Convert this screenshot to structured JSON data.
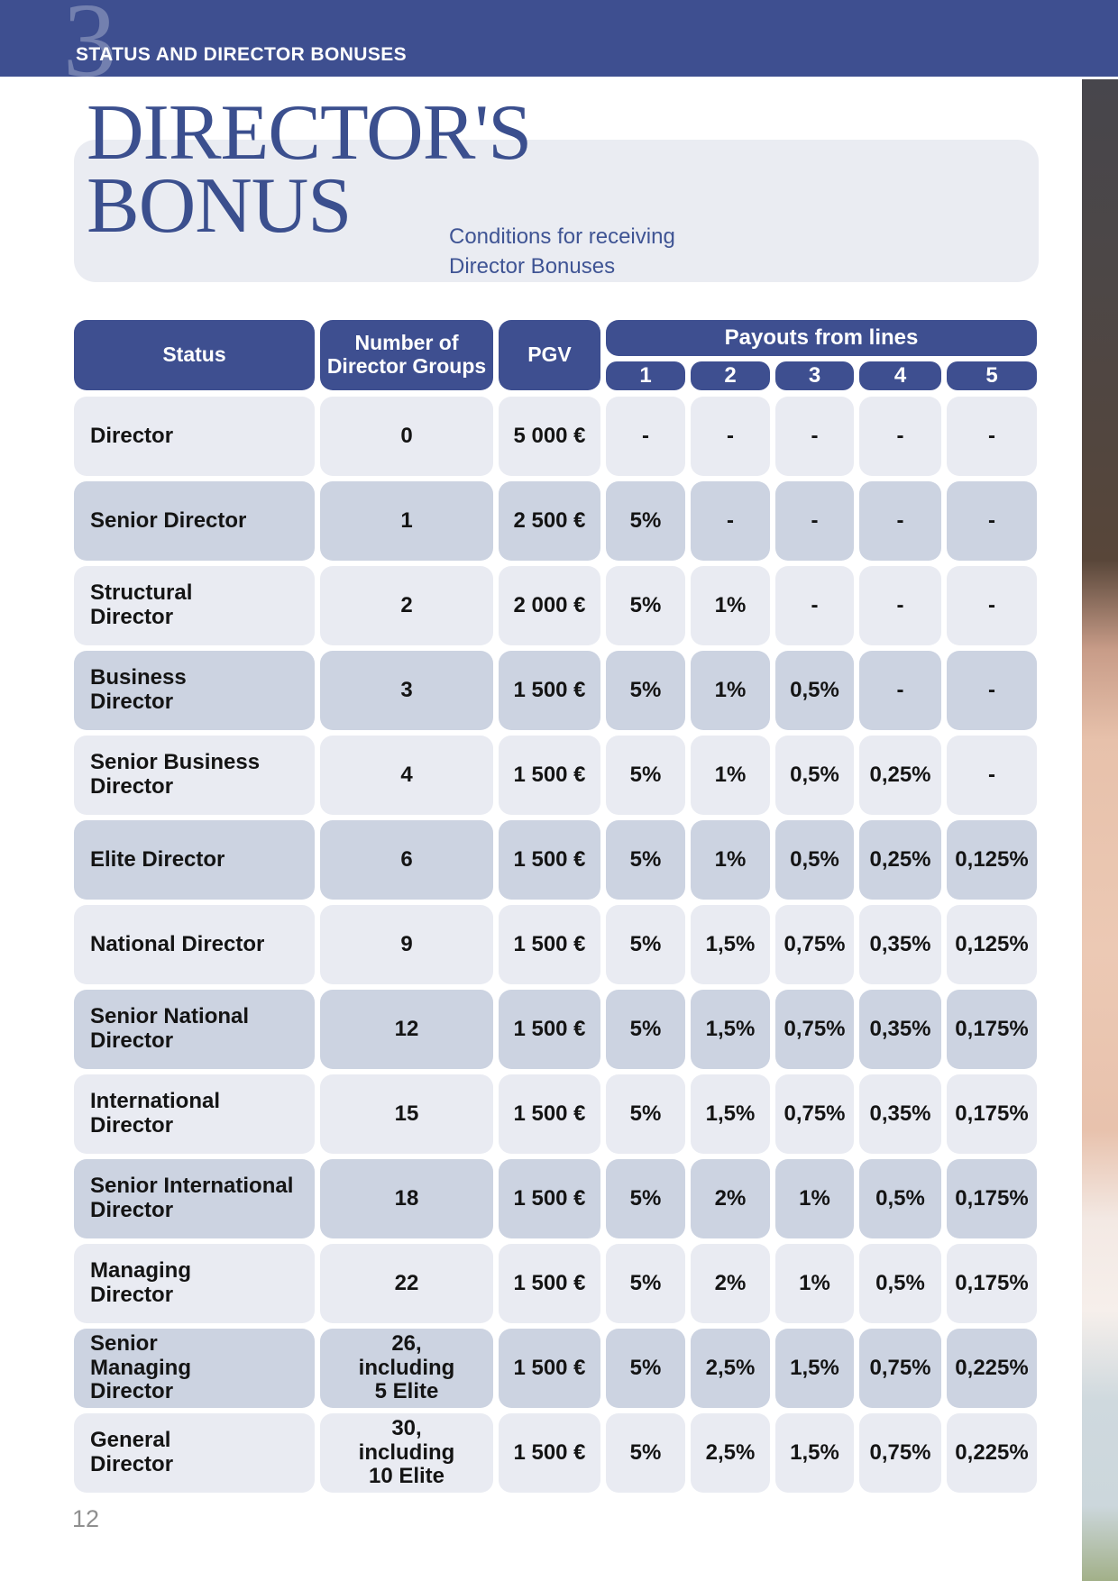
{
  "header": {
    "chapter_number": "3",
    "chapter_title": "STATUS AND DIRECTOR BONUSES"
  },
  "hero": {
    "title": "DIRECTOR'S\nBONUS",
    "subtitle": "Conditions for receiving\nDirector Bonuses"
  },
  "table": {
    "headers": {
      "status": "Status",
      "groups": "Number of\nDirector Groups",
      "pgv": "PGV",
      "payouts_group": "Payouts from lines",
      "lines": [
        "1",
        "2",
        "3",
        "4",
        "5"
      ]
    },
    "rows": [
      {
        "status": "Director",
        "groups": "0",
        "pgv": "5 000 €",
        "lines": [
          "-",
          "-",
          "-",
          "-",
          "-"
        ]
      },
      {
        "status": "Senior Director",
        "groups": "1",
        "pgv": "2 500 €",
        "lines": [
          "5%",
          "-",
          "-",
          "-",
          "-"
        ]
      },
      {
        "status": "Structural\nDirector",
        "groups": "2",
        "pgv": "2 000 €",
        "lines": [
          "5%",
          "1%",
          "-",
          "-",
          "-"
        ]
      },
      {
        "status": "Business\nDirector",
        "groups": "3",
        "pgv": "1 500 €",
        "lines": [
          "5%",
          "1%",
          "0,5%",
          "-",
          "-"
        ]
      },
      {
        "status": "Senior Business\nDirector",
        "groups": "4",
        "pgv": "1 500 €",
        "lines": [
          "5%",
          "1%",
          "0,5%",
          "0,25%",
          "-"
        ]
      },
      {
        "status": "Elite Director",
        "groups": "6",
        "pgv": "1 500 €",
        "lines": [
          "5%",
          "1%",
          "0,5%",
          "0,25%",
          "0,125%"
        ]
      },
      {
        "status": "National Director",
        "groups": "9",
        "pgv": "1 500 €",
        "lines": [
          "5%",
          "1,5%",
          "0,75%",
          "0,35%",
          "0,125%"
        ]
      },
      {
        "status": "Senior National\nDirector",
        "groups": "12",
        "pgv": "1 500 €",
        "lines": [
          "5%",
          "1,5%",
          "0,75%",
          "0,35%",
          "0,175%"
        ]
      },
      {
        "status": "International\nDirector",
        "groups": "15",
        "pgv": "1 500 €",
        "lines": [
          "5%",
          "1,5%",
          "0,75%",
          "0,35%",
          "0,175%"
        ]
      },
      {
        "status": "Senior International\nDirector",
        "groups": "18",
        "pgv": "1 500 €",
        "lines": [
          "5%",
          "2%",
          "1%",
          "0,5%",
          "0,175%"
        ]
      },
      {
        "status": "Managing\nDirector",
        "groups": "22",
        "pgv": "1 500 €",
        "lines": [
          "5%",
          "2%",
          "1%",
          "0,5%",
          "0,175%"
        ]
      },
      {
        "status": "Senior\nManaging\nDirector",
        "groups": "26,\nincluding\n5 Elite",
        "pgv": "1 500 €",
        "lines": [
          "5%",
          "2,5%",
          "1,5%",
          "0,75%",
          "0,225%"
        ]
      },
      {
        "status": "General\nDirector",
        "groups": "30,\nincluding\n10 Elite",
        "pgv": "1 500 €",
        "lines": [
          "5%",
          "2,5%",
          "1,5%",
          "0,75%",
          "0,225%"
        ]
      }
    ]
  },
  "footer": {
    "page_number": "12"
  },
  "colors": {
    "accent": "#3e4f90",
    "row_light": "#e9ebf2",
    "row_dark": "#ccd3e1",
    "panel": "#eaecf2",
    "title": "#3b4f8e",
    "subtitle": "#3f5494",
    "page_num": "#8f8f8f"
  }
}
